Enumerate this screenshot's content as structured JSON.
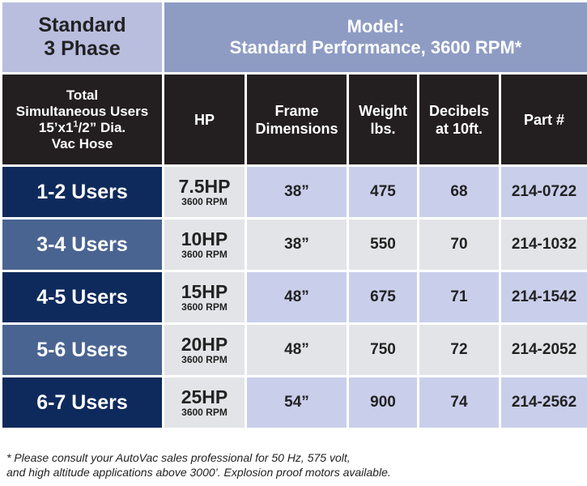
{
  "header": {
    "title_line1": "Standard",
    "title_line2": "3 Phase",
    "model_line1": "Model:",
    "model_line2": "Standard Performance,  3600 RPM*"
  },
  "columns": {
    "users_line1": "Total",
    "users_line2": "Simultaneous Users",
    "users_line3_pre": "15’x1",
    "users_line3_sup": "1",
    "users_line3_mid": "/",
    "users_line3_sub": "2",
    "users_line3_post": "” Dia.",
    "users_line4": "Vac Hose",
    "hp": "HP",
    "frame_line1": "Frame",
    "frame_line2": "Dimensions",
    "weight_line1": "Weight",
    "weight_line2": "lbs.",
    "db_line1": "Decibels",
    "db_line2": "at 10ft.",
    "part": "Part #"
  },
  "rows": [
    {
      "users": "1-2 Users",
      "hp": "7.5HP",
      "rpm": "3600 RPM",
      "frame": "38”",
      "weight": "475",
      "db": "68",
      "part": "214-0722"
    },
    {
      "users": "3-4 Users",
      "hp": "10HP",
      "rpm": "3600 RPM",
      "frame": "38”",
      "weight": "550",
      "db": "70",
      "part": "214-1032"
    },
    {
      "users": "4-5 Users",
      "hp": "15HP",
      "rpm": "3600 RPM",
      "frame": "48”",
      "weight": "675",
      "db": "71",
      "part": "214-1542"
    },
    {
      "users": "5-6 Users",
      "hp": "20HP",
      "rpm": "3600 RPM",
      "frame": "48”",
      "weight": "750",
      "db": "72",
      "part": "214-2052"
    },
    {
      "users": "6-7 Users",
      "hp": "25HP",
      "rpm": "3600 RPM",
      "frame": "54”",
      "weight": "900",
      "db": "74",
      "part": "214-2562"
    }
  ],
  "footnote": {
    "line1": "* Please consult your AutoVac sales professional for 50 Hz, 575 volt,",
    "line2": "and high altitude applications above 3000’. Explosion proof motors available."
  },
  "colors": {
    "title_bg": "#b9bedf",
    "model_bg": "#8e9cc4",
    "header_bg": "#231f20",
    "users_dark": "#0e2a5c",
    "users_mid": "#4a6492",
    "cell_blue": "#c9cfeb",
    "cell_gray": "#e3e4e7"
  }
}
